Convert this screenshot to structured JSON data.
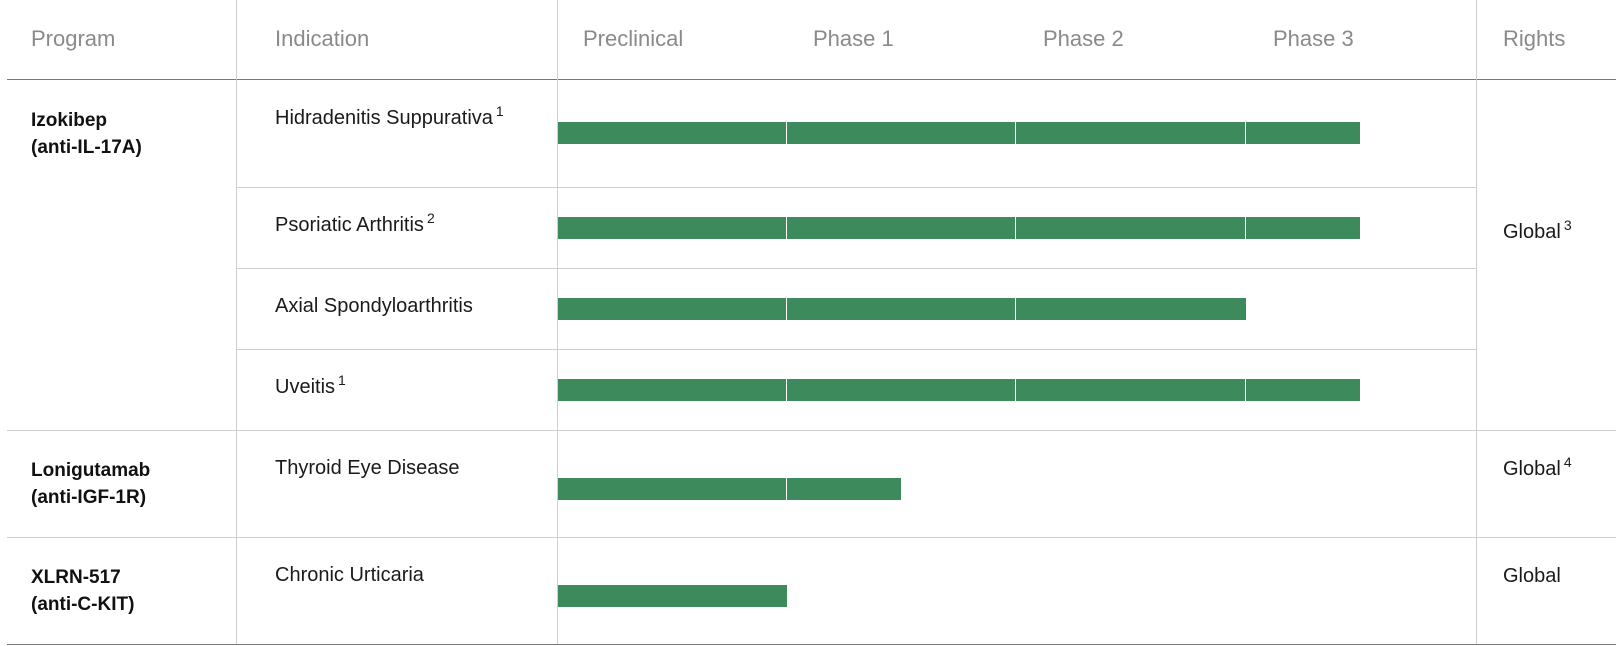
{
  "headers": {
    "program": "Program",
    "indication": "Indication",
    "phases": [
      "Preclinical",
      "Phase 1",
      "Phase 2",
      "Phase 3"
    ],
    "rights": "Rights"
  },
  "colors": {
    "bar": "#3d8a5d",
    "divider": "#cfcfcf",
    "header_text": "#8a8a8a"
  },
  "programs": [
    {
      "name": "Izokibep",
      "target": "(anti-IL-17A)",
      "rights": "Global",
      "rights_note": "3",
      "indications": [
        {
          "name": "Hidradenitis Suppurativa",
          "note": "1",
          "progress": 3.5
        },
        {
          "name": "Psoriatic Arthritis",
          "note": "2",
          "progress": 3.5
        },
        {
          "name": "Axial Spondyloarthritis",
          "note": "",
          "progress": 3.0
        },
        {
          "name": "Uveitis",
          "note": "1",
          "progress": 3.5
        }
      ]
    },
    {
      "name": "Lonigutamab",
      "target": "(anti-IGF-1R)",
      "rights": "Global",
      "rights_note": "4",
      "indications": [
        {
          "name": "Thyroid Eye Disease",
          "note": "",
          "progress": 1.5
        }
      ]
    },
    {
      "name": "XLRN-517",
      "target": "(anti-C-KIT)",
      "rights": "Global",
      "rights_note": "",
      "indications": [
        {
          "name": "Chronic Urticaria",
          "note": "",
          "progress": 1.0
        }
      ]
    }
  ],
  "chart_data": {
    "type": "bar",
    "orientation": "horizontal",
    "x_axis_categories": [
      "Preclinical",
      "Phase 1",
      "Phase 2",
      "Phase 3"
    ],
    "categories": [
      "Hidradenitis Suppurativa",
      "Psoriatic Arthritis",
      "Axial Spondyloarthritis",
      "Uveitis",
      "Thyroid Eye Disease",
      "Chronic Urticaria"
    ],
    "values": [
      3.5,
      3.5,
      3.0,
      3.5,
      1.5,
      1.0
    ],
    "xlim": [
      0,
      4
    ]
  }
}
